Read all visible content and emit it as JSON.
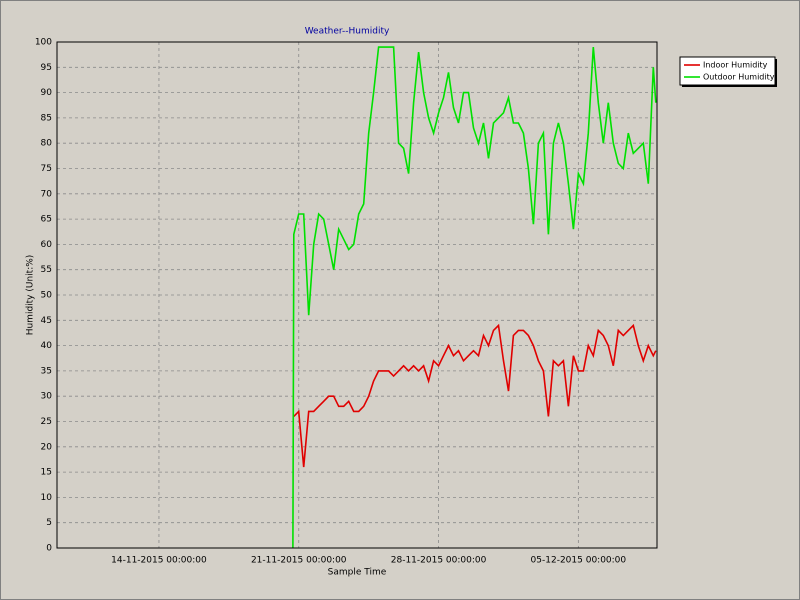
{
  "chart_data": {
    "type": "line",
    "title": "Weather--Humidity",
    "x_label": "Sample Time",
    "y_label": "Humidity (Unit:%)",
    "x": [
      "20-11-2015 17:00:00",
      "20-11-2015 18:00:00",
      "21-11-2015 00:00:00",
      "21-11-2015 06:00:00",
      "21-11-2015 12:00:00",
      "21-11-2015 18:00:00",
      "22-11-2015 00:00:00",
      "22-11-2015 06:00:00",
      "22-11-2015 12:00:00",
      "22-11-2015 18:00:00",
      "23-11-2015 00:00:00",
      "23-11-2015 06:00:00",
      "23-11-2015 12:00:00",
      "23-11-2015 18:00:00",
      "24-11-2015 00:00:00",
      "24-11-2015 06:00:00",
      "24-11-2015 12:00:00",
      "24-11-2015 18:00:00",
      "25-11-2015 00:00:00",
      "25-11-2015 06:00:00",
      "25-11-2015 12:00:00",
      "25-11-2015 18:00:00",
      "26-11-2015 00:00:00",
      "26-11-2015 06:00:00",
      "26-11-2015 12:00:00",
      "26-11-2015 18:00:00",
      "27-11-2015 00:00:00",
      "27-11-2015 06:00:00",
      "27-11-2015 12:00:00",
      "27-11-2015 18:00:00",
      "28-11-2015 00:00:00",
      "28-11-2015 06:00:00",
      "28-11-2015 12:00:00",
      "28-11-2015 18:00:00",
      "29-11-2015 00:00:00",
      "29-11-2015 06:00:00",
      "29-11-2015 12:00:00",
      "29-11-2015 18:00:00",
      "30-11-2015 00:00:00",
      "30-11-2015 06:00:00",
      "30-11-2015 12:00:00",
      "30-11-2015 18:00:00",
      "01-12-2015 00:00:00",
      "01-12-2015 06:00:00",
      "01-12-2015 12:00:00",
      "01-12-2015 18:00:00",
      "02-12-2015 00:00:00",
      "02-12-2015 06:00:00",
      "02-12-2015 12:00:00",
      "02-12-2015 18:00:00",
      "03-12-2015 00:00:00",
      "03-12-2015 06:00:00",
      "03-12-2015 12:00:00",
      "03-12-2015 18:00:00",
      "04-12-2015 00:00:00",
      "04-12-2015 06:00:00",
      "04-12-2015 12:00:00",
      "04-12-2015 18:00:00",
      "05-12-2015 00:00:00",
      "05-12-2015 06:00:00",
      "05-12-2015 12:00:00",
      "05-12-2015 18:00:00",
      "06-12-2015 00:00:00",
      "06-12-2015 06:00:00",
      "06-12-2015 12:00:00",
      "06-12-2015 18:00:00",
      "07-12-2015 00:00:00",
      "07-12-2015 06:00:00",
      "07-12-2015 12:00:00",
      "07-12-2015 18:00:00",
      "08-12-2015 00:00:00",
      "08-12-2015 06:00:00",
      "08-12-2015 12:00:00",
      "08-12-2015 18:00:00",
      "08-12-2015 21:00:00"
    ],
    "series": [
      {
        "name": "Indoor Humidity",
        "color": "#e00000",
        "values": [
          null,
          26,
          27,
          16,
          27,
          27,
          28,
          29,
          30,
          30,
          28,
          28,
          29,
          27,
          27,
          28,
          30,
          33,
          35,
          35,
          35,
          34,
          35,
          36,
          35,
          36,
          35,
          36,
          33,
          37,
          36,
          38,
          40,
          38,
          39,
          37,
          38,
          39,
          38,
          42,
          40,
          43,
          44,
          37,
          31,
          42,
          43,
          43,
          42,
          40,
          37,
          35,
          26,
          37,
          36,
          37,
          28,
          38,
          35,
          35,
          40,
          38,
          43,
          42,
          40,
          36,
          43,
          42,
          43,
          44,
          40,
          37,
          40,
          38,
          39
        ]
      },
      {
        "name": "Outdoor Humidity",
        "color": "#00e000",
        "values": [
          0,
          62,
          66,
          66,
          46,
          60,
          66,
          65,
          60,
          55,
          63,
          61,
          59,
          60,
          66,
          68,
          82,
          90,
          99,
          99,
          99,
          99,
          80,
          79,
          74,
          88,
          98,
          90,
          85,
          82,
          86,
          89,
          94,
          87,
          84,
          90,
          90,
          83,
          80,
          84,
          77,
          84,
          85,
          86,
          89,
          84,
          84,
          82,
          75,
          64,
          80,
          82,
          62,
          80,
          84,
          80,
          72,
          63,
          74,
          72,
          82,
          99,
          88,
          80,
          88,
          80,
          76,
          75,
          82,
          78,
          79,
          80,
          72,
          95,
          88
        ]
      }
    ],
    "xlim": [
      "08-11-2015 21:30:00",
      "08-12-2015 22:30:00"
    ],
    "xticks": [
      "14-11-2015 00:00:00",
      "21-11-2015 00:00:00",
      "28-11-2015 00:00:00",
      "05-12-2015 00:00:00"
    ],
    "ylim": [
      0,
      100
    ],
    "yticks": [
      0,
      5,
      10,
      15,
      20,
      25,
      30,
      35,
      40,
      45,
      50,
      55,
      60,
      65,
      70,
      75,
      80,
      85,
      90,
      95,
      100
    ],
    "grid": true,
    "legend": "top-right"
  }
}
